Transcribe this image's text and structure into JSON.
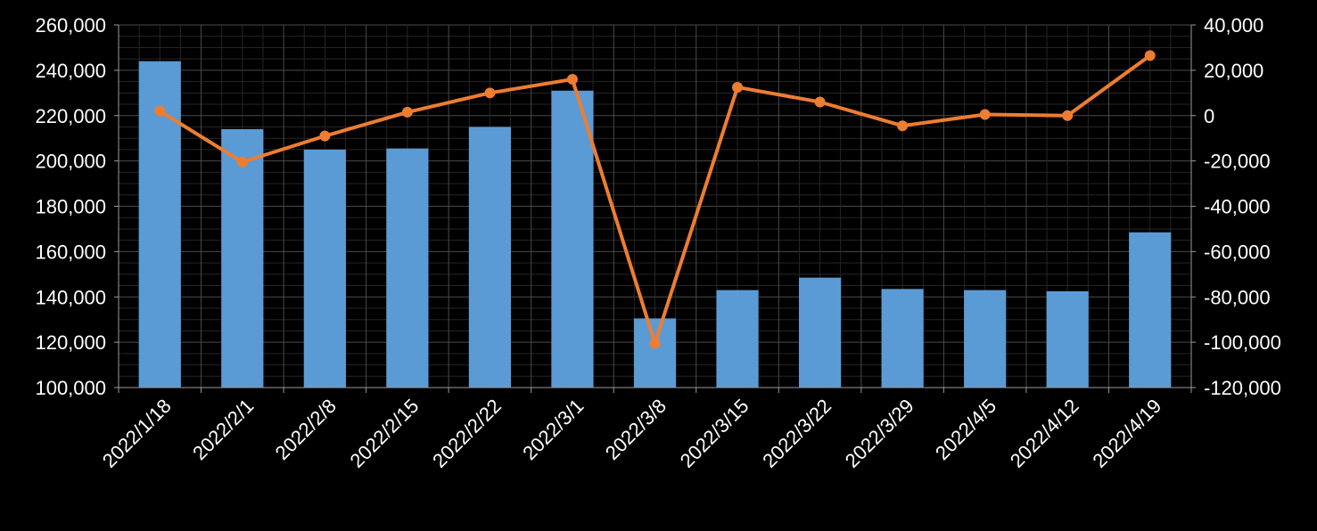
{
  "chart_data": {
    "type": "bar",
    "categories": [
      "2022/1/18",
      "2022/2/1",
      "2022/2/8",
      "2022/2/15",
      "2022/2/22",
      "2022/3/1",
      "2022/3/8",
      "2022/3/15",
      "2022/3/22",
      "2022/3/29",
      "2022/4/5",
      "2022/4/12",
      "2022/4/19"
    ],
    "series": [
      {
        "type": "bar",
        "axis": "left",
        "color": "#5b9bd5",
        "values": [
          244000,
          214000,
          205000,
          205500,
          215000,
          231000,
          130500,
          143000,
          148500,
          143500,
          143000,
          142500,
          168500
        ]
      },
      {
        "type": "line",
        "axis": "right",
        "color": "#ed7d31",
        "values": [
          2000,
          -20500,
          -9000,
          1500,
          10000,
          16000,
          -100500,
          12500,
          6000,
          -4500,
          500,
          0,
          26500
        ]
      }
    ],
    "y_left": {
      "min": 100000,
      "max": 260000,
      "tick_labels": [
        "100,000",
        "120,000",
        "140,000",
        "160,000",
        "180,000",
        "200,000",
        "220,000",
        "240,000",
        "260,000"
      ]
    },
    "y_right": {
      "min": -120000,
      "max": 40000,
      "tick_labels": [
        "-120,000",
        "-100,000",
        "-80,000",
        "-60,000",
        "-40,000",
        "-20,000",
        "0",
        "20,000",
        "40,000"
      ]
    },
    "grid": true,
    "legend": "none",
    "title": "",
    "xlabel": "",
    "ylabel": ""
  }
}
